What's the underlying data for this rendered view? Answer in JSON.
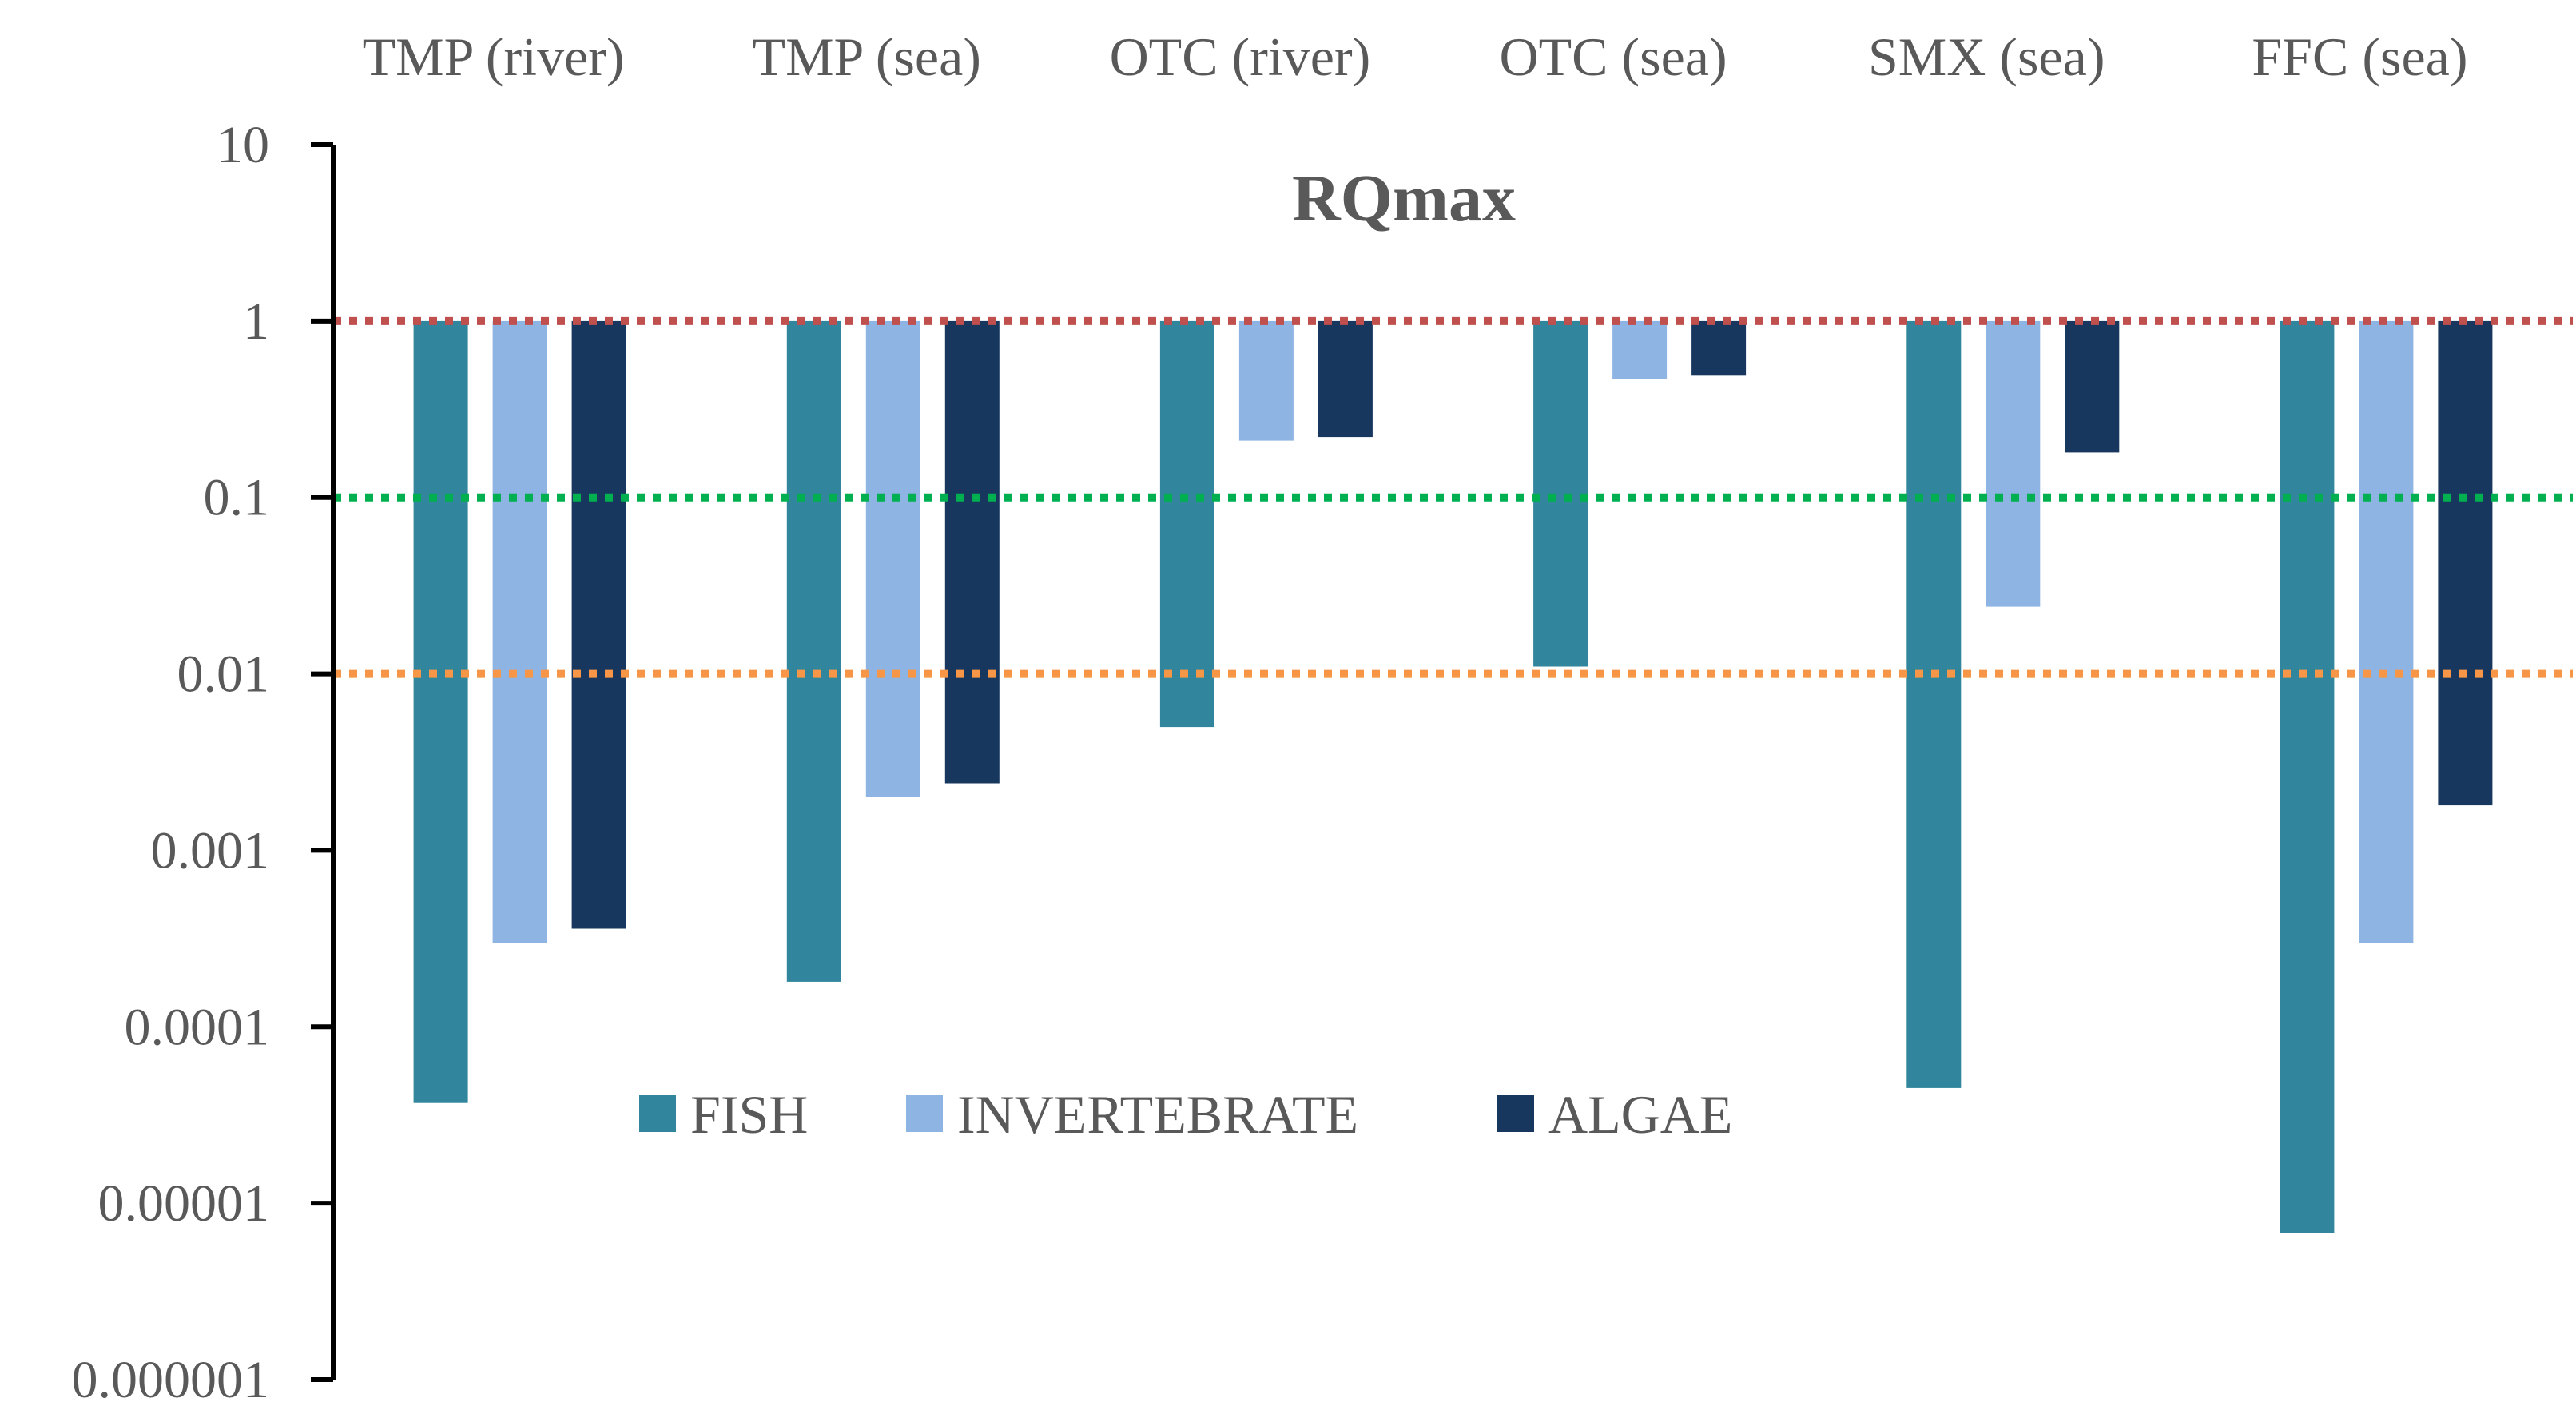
{
  "chart_data": {
    "type": "bar",
    "title": "RQmax",
    "yscale": "log",
    "ylim": [
      1e-06,
      10
    ],
    "categories": [
      "TMP (river)",
      "TMP (sea)",
      "OTC (river)",
      "OTC (sea)",
      "SMX (sea)",
      "FFC (sea)"
    ],
    "category_axis_position": "top",
    "y_ticks": [
      {
        "value": 10,
        "label": "10"
      },
      {
        "value": 1,
        "label": "1"
      },
      {
        "value": 0.1,
        "label": "0.1"
      },
      {
        "value": 0.01,
        "label": "0.01"
      },
      {
        "value": 0.001,
        "label": "0.001"
      },
      {
        "value": 0.0001,
        "label": "0.0001"
      },
      {
        "value": 1e-05,
        "label": "0.00001"
      },
      {
        "value": 1e-06,
        "label": "0.000001"
      }
    ],
    "baseline": 1,
    "series": [
      {
        "name": "FISH",
        "color": "#31859c",
        "values": [
          3.7e-05,
          0.00018,
          0.005,
          0.011,
          4.5e-05,
          6.8e-06
        ]
      },
      {
        "name": "INVERTEBRATE",
        "color": "#8eb4e3",
        "values": [
          0.0003,
          0.002,
          0.21,
          0.47,
          0.024,
          0.0003
        ]
      },
      {
        "name": "ALGAE",
        "color": "#17375e",
        "values": [
          0.00036,
          0.0024,
          0.22,
          0.49,
          0.18,
          0.0018
        ]
      }
    ],
    "reference_lines": [
      {
        "value": 1,
        "color": "#c0504d",
        "style": "dotted"
      },
      {
        "value": 0.1,
        "color": "#00b050",
        "style": "dotted"
      },
      {
        "value": 0.01,
        "color": "#f79646",
        "style": "dotted"
      }
    ],
    "legend_position": "center-left"
  }
}
